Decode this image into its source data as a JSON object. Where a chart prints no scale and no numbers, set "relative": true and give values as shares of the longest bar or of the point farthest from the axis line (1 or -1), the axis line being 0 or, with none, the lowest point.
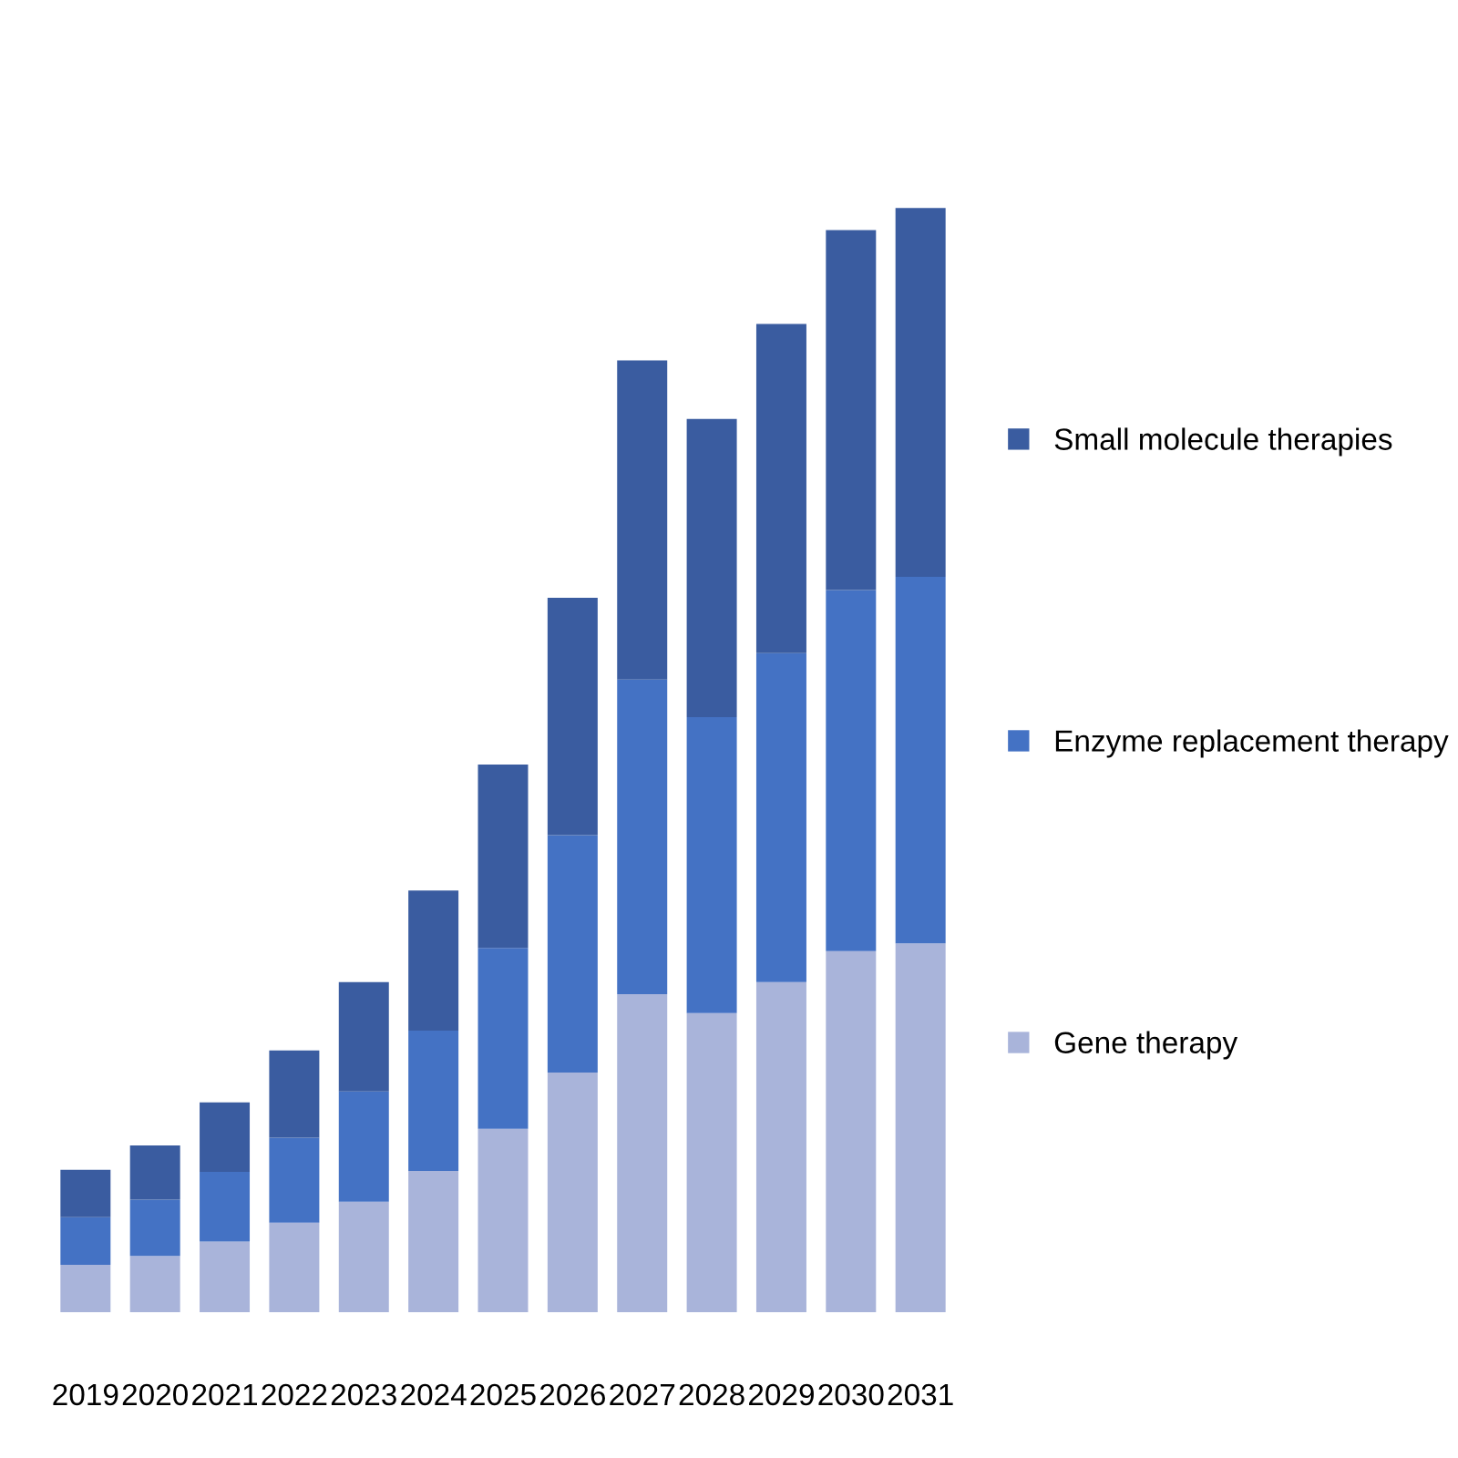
{
  "chart_data": {
    "type": "bar",
    "stacked": true,
    "relative": true,
    "legend": "right",
    "grid": false,
    "categories": [
      "2019",
      "2020",
      "2021",
      "2022",
      "2023",
      "2024",
      "2025",
      "2026",
      "2027",
      "2028",
      "2029",
      "2030",
      "2031"
    ],
    "series": [
      {
        "name": "Gene therapy",
        "color": "#a9b4da",
        "values": [
          0.043,
          0.051,
          0.064,
          0.081,
          0.1,
          0.128,
          0.166,
          0.217,
          0.288,
          0.271,
          0.299,
          0.327,
          0.334
        ]
      },
      {
        "name": "Enzyme replacement therapy",
        "color": "#4472c4",
        "values": [
          0.043,
          0.051,
          0.063,
          0.077,
          0.1,
          0.127,
          0.164,
          0.215,
          0.285,
          0.268,
          0.298,
          0.327,
          0.332
        ]
      },
      {
        "name": "Small molecule therapies",
        "color": "#3a5ca0",
        "values": [
          0.043,
          0.049,
          0.063,
          0.079,
          0.099,
          0.127,
          0.166,
          0.215,
          0.289,
          0.27,
          0.298,
          0.326,
          0.334
        ]
      }
    ]
  }
}
